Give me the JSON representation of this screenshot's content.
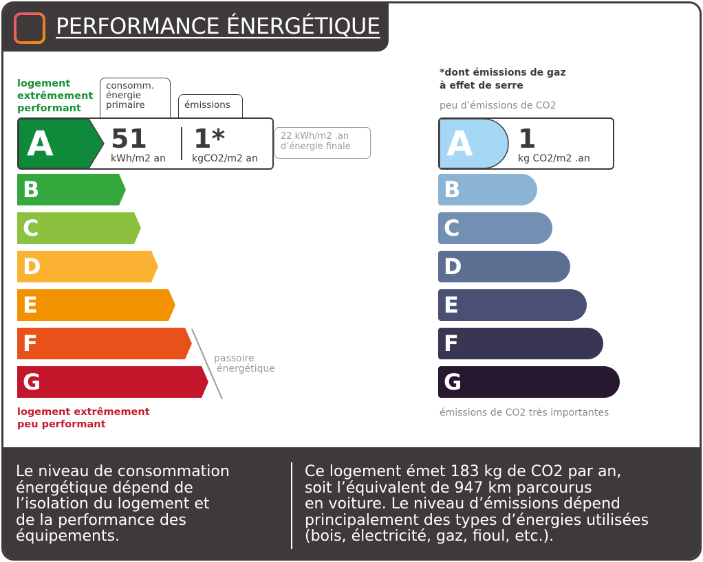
{
  "header": {
    "title": "PERFORMANCE ÉNERGÉTIQUE",
    "logo_icon": "house-grid-icon",
    "logo_colors": [
      "#e94e7b",
      "#f39200"
    ]
  },
  "energy": {
    "top_label": [
      "logement",
      "extrêmement",
      "performant"
    ],
    "bottom_label": [
      "logement extrêmement",
      "peu performant"
    ],
    "col_consumption": [
      "consomm.",
      "énergie",
      "primaire"
    ],
    "col_emissions": "émissions",
    "current_class": "A",
    "consumption_value": "51",
    "consumption_unit": "kWh/m2 an",
    "emissions_value": "1*",
    "emissions_unit": "kgCO2/m2 an",
    "final_energy": [
      "22 kWh/m2 .an",
      "d’énergie finale"
    ],
    "passoire": [
      "passoire",
      "énergétique"
    ],
    "classes": [
      {
        "letter": "A",
        "color": "#0e8a3a"
      },
      {
        "letter": "B",
        "color": "#34a73d"
      },
      {
        "letter": "C",
        "color": "#8bc13f"
      },
      {
        "letter": "D",
        "color": "#fbb233"
      },
      {
        "letter": "E",
        "color": "#f39200"
      },
      {
        "letter": "F",
        "color": "#e9511b"
      },
      {
        "letter": "G",
        "color": "#c3162b"
      }
    ]
  },
  "co2": {
    "heading": [
      "*dont émissions de gaz",
      "à effet de serre"
    ],
    "top_note": "peu d’émissions de CO2",
    "bottom_note": "émissions de CO2 très importantes",
    "current_class": "A",
    "value": "1",
    "unit": "kg CO2/m2 .an",
    "classes": [
      {
        "letter": "A",
        "color": "#a6d8f6"
      },
      {
        "letter": "B",
        "color": "#8ab3d4"
      },
      {
        "letter": "C",
        "color": "#7290b2"
      },
      {
        "letter": "D",
        "color": "#5c6f93"
      },
      {
        "letter": "E",
        "color": "#4a5074"
      },
      {
        "letter": "F",
        "color": "#393653"
      },
      {
        "letter": "G",
        "color": "#28182f"
      }
    ]
  },
  "footer": {
    "left_text": [
      "Le niveau de consommation",
      "énergétique dépend de",
      "l’isolation du logement et",
      "de la performance des",
      "équipements."
    ],
    "right_text": [
      "Ce logement émet 183 kg de CO2 par an,",
      "soit l’équivalent de 947 km parcourus",
      "en voiture. Le niveau d’émissions dépend",
      "principalement des types d’énergies utilisées",
      "(bois, électricité, gaz, fioul, etc.)."
    ]
  }
}
